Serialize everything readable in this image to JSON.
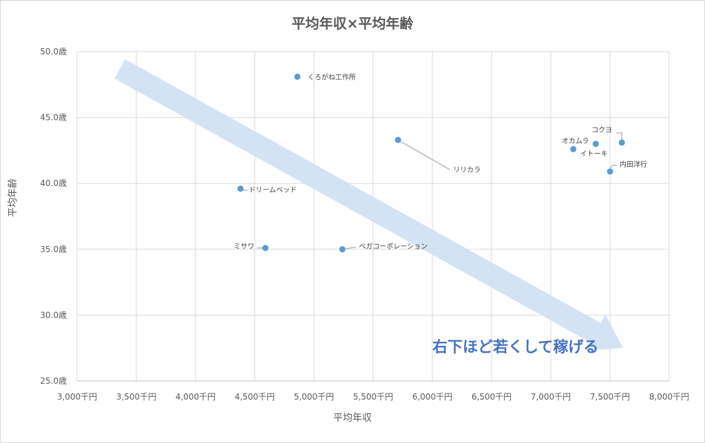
{
  "chart_data": {
    "type": "scatter",
    "title": "平均年収×平均年齢",
    "xlabel": "平均年収",
    "ylabel": "平均年齢",
    "xlim": [
      3000,
      8000
    ],
    "ylim": [
      25.0,
      50.0
    ],
    "x_ticks": [
      "3,000千円",
      "3,500千円",
      "4,000千円",
      "4,500千円",
      "5,000千円",
      "5,500千円",
      "6,000千円",
      "6,500千円",
      "7,000千円",
      "7,500千円",
      "8,000千円"
    ],
    "y_ticks": [
      "25.0歳",
      "30.0歳",
      "35.0歳",
      "40.0歳",
      "45.0歳",
      "50.0歳"
    ],
    "grid": true,
    "marker_color": "#5b9bd5",
    "points": [
      {
        "label": "くろがね工作所",
        "x": 4860,
        "y": 48.1
      },
      {
        "label": "リリカラ",
        "x": 5710,
        "y": 43.3
      },
      {
        "label": "コクヨ",
        "x": 7600,
        "y": 43.1
      },
      {
        "label": "オカムラ",
        "x": 7380,
        "y": 43.0
      },
      {
        "label": "イトーキ",
        "x": 7190,
        "y": 42.6
      },
      {
        "label": "内田洋行",
        "x": 7500,
        "y": 40.9
      },
      {
        "label": "ドリームベッド",
        "x": 4380,
        "y": 39.6
      },
      {
        "label": "ミサワ",
        "x": 4590,
        "y": 35.1
      },
      {
        "label": "ベガコーポレーション",
        "x": 5240,
        "y": 35.0
      }
    ],
    "annotation": {
      "text": "右下ほど若くして稼げる",
      "arrow_color": "#cfe0f3"
    }
  }
}
